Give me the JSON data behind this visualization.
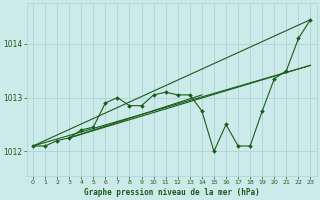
{
  "xlabel": "Graphe pression niveau de la mer (hPa)",
  "background_color": "#cdeaea",
  "grid_color": "#b0d8d8",
  "line_color": "#1a5c1a",
  "x_ticks": [
    0,
    1,
    2,
    3,
    4,
    5,
    6,
    7,
    8,
    9,
    10,
    11,
    12,
    13,
    14,
    15,
    16,
    17,
    18,
    19,
    20,
    21,
    22,
    23
  ],
  "y_ticks": [
    1012,
    1013,
    1014
  ],
  "ylim": [
    1011.55,
    1014.75
  ],
  "xlim": [
    -0.5,
    23.5
  ],
  "series1": [
    1012.1,
    1012.1,
    1012.2,
    1012.25,
    1012.4,
    1012.45,
    1012.9,
    1013.0,
    1012.85,
    1012.85,
    1013.05,
    1013.1,
    1013.05,
    1013.05,
    1012.75,
    1012.0,
    1012.5,
    1012.1,
    1012.1,
    1012.75,
    1013.35,
    1013.5,
    1014.1,
    1014.45
  ],
  "trend1_x": [
    0,
    23
  ],
  "trend1_y": [
    1012.1,
    1014.45
  ],
  "trend2_x": [
    0,
    23
  ],
  "trend2_y": [
    1012.1,
    1013.6
  ],
  "trend3_x": [
    3,
    14
  ],
  "trend3_y": [
    1012.25,
    1013.05
  ],
  "trend4_x": [
    3,
    23
  ],
  "trend4_y": [
    1012.25,
    1013.6
  ]
}
